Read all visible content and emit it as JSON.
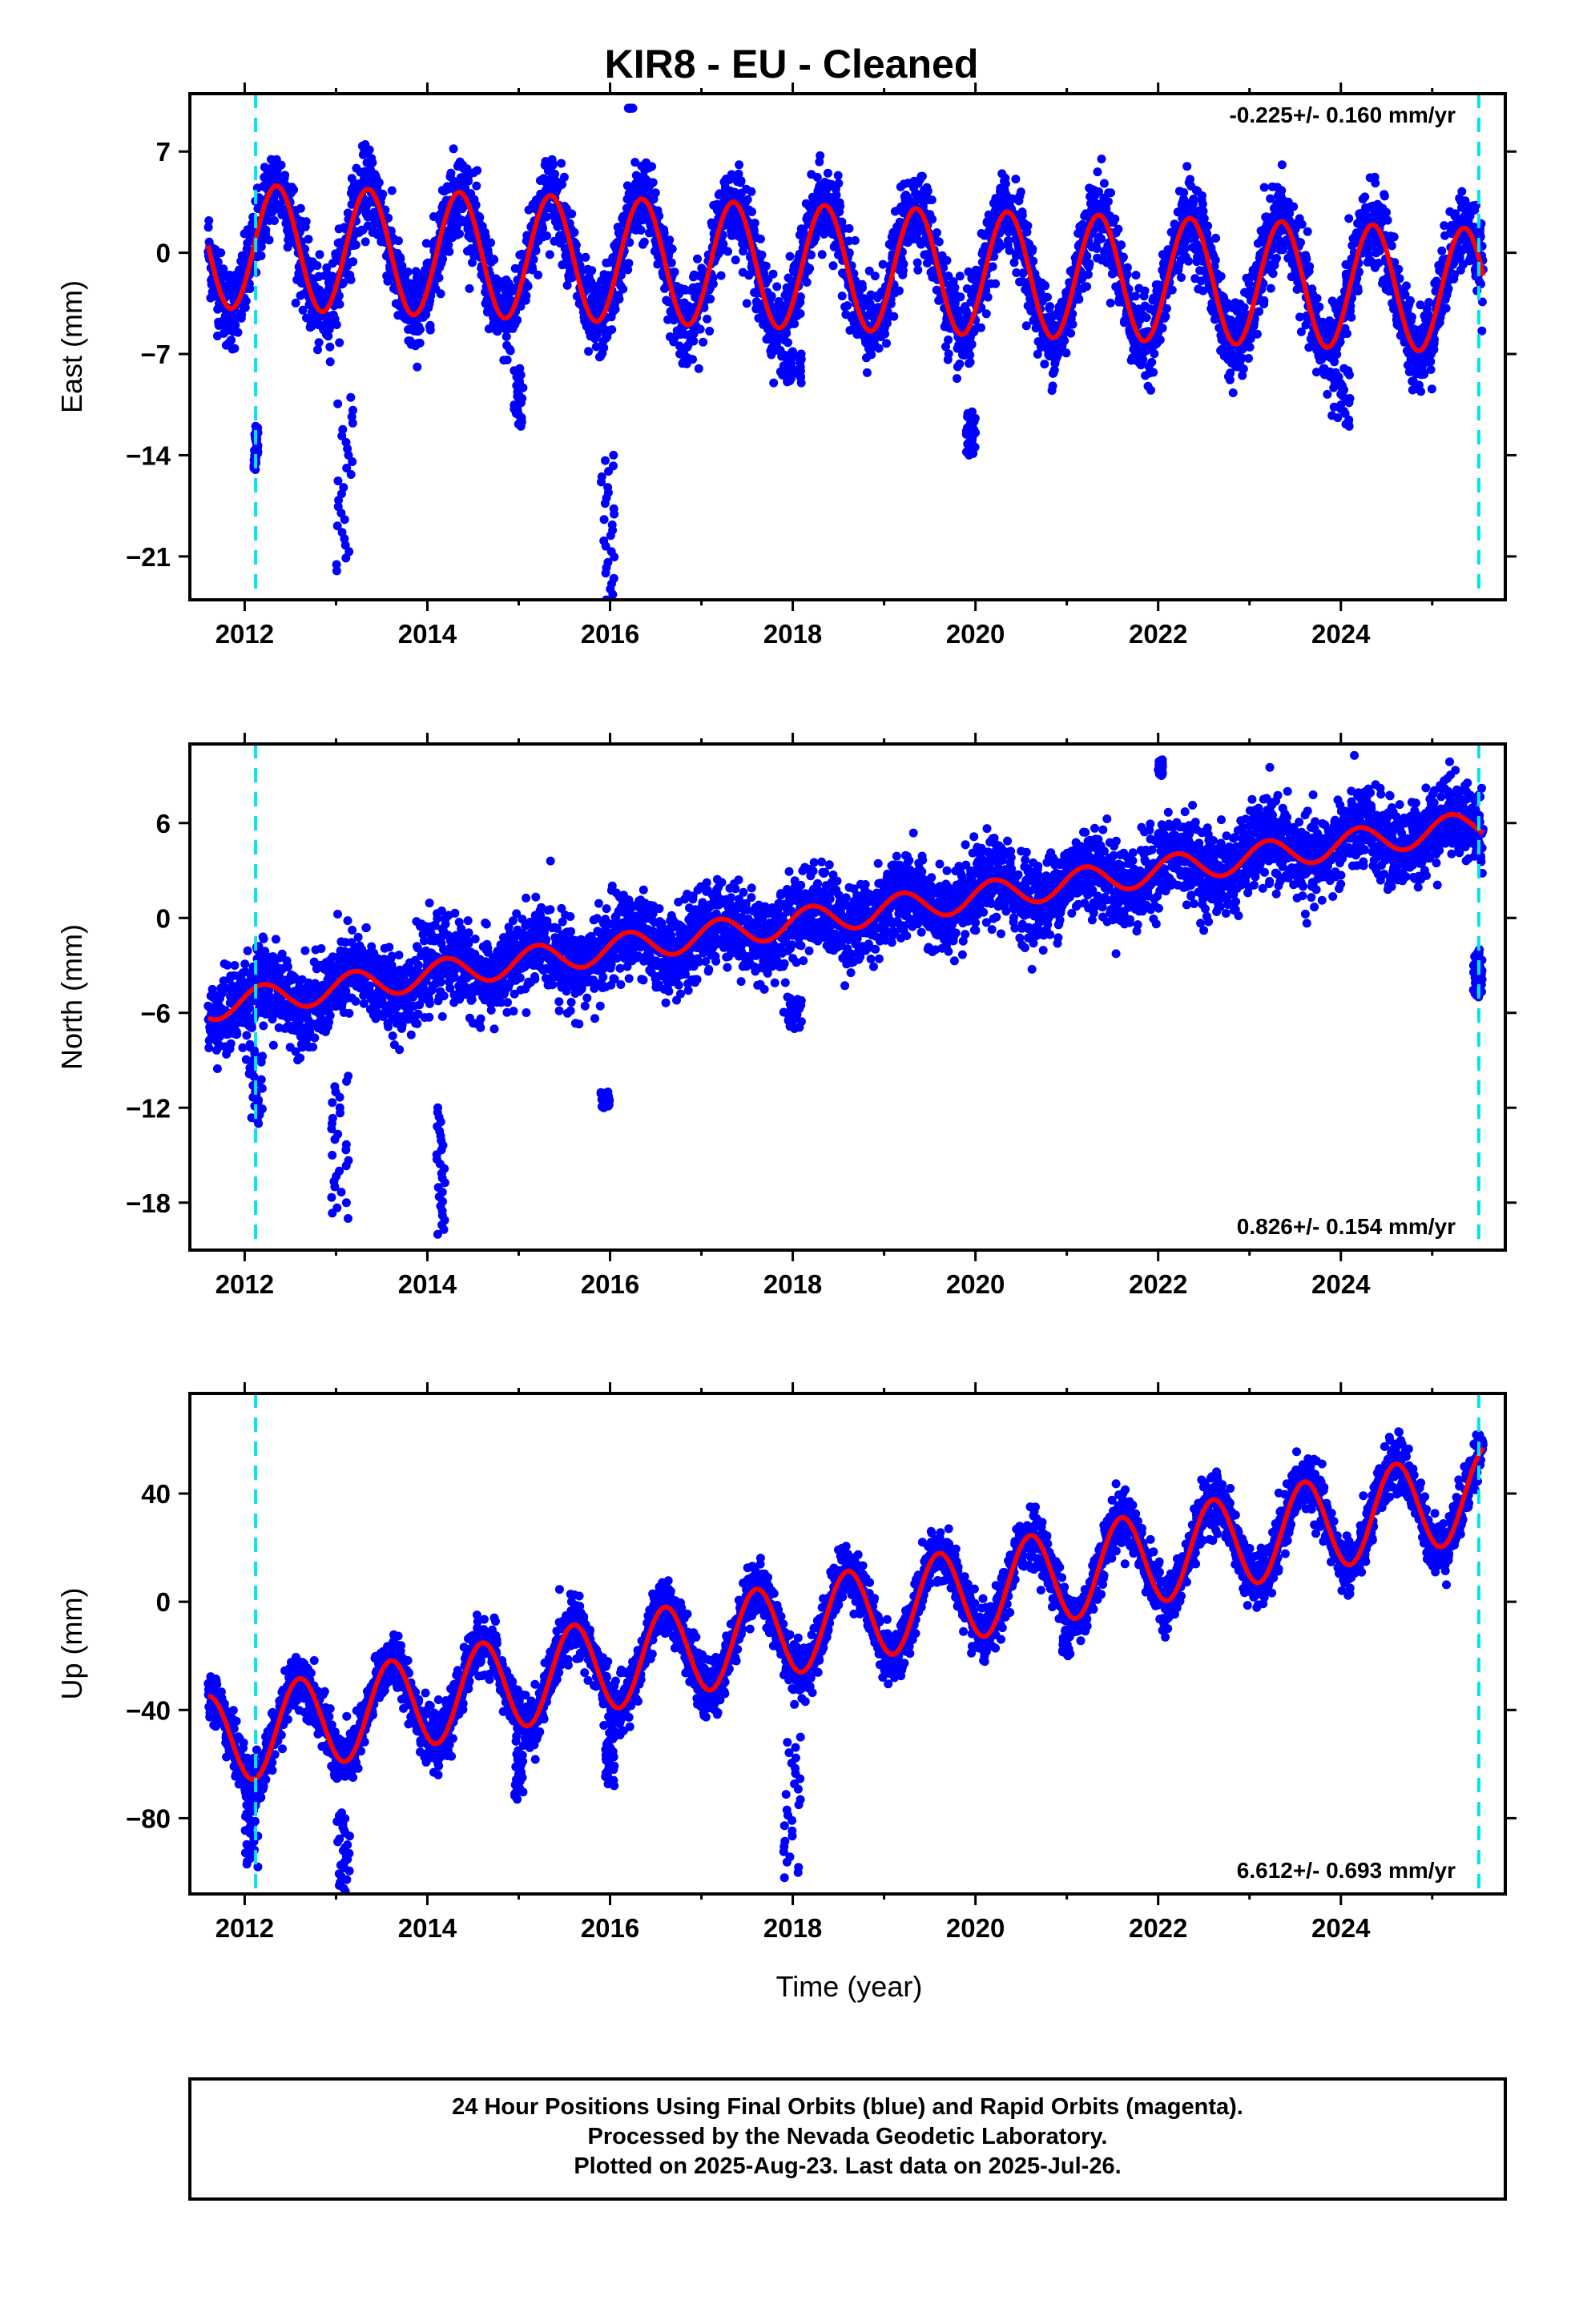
{
  "title": "KIR8  - EU - Cleaned",
  "xlabel": "Time (year)",
  "footer": {
    "line1": "24 Hour Positions Using Final Orbits (blue) and Rapid Orbits (magenta).",
    "line2": "Processed by the Nevada Geodetic Laboratory.",
    "line3": "Plotted on 2025-Aug-23. Last data on 2025-Jul-26."
  },
  "colors": {
    "data": "#0000ff",
    "model": "#ff0000",
    "break_line": "#00e5ee",
    "frame": "#000000"
  },
  "chart_data": [
    {
      "type": "scatter",
      "component": "east",
      "ylabel": "East (mm)",
      "rate_label": "-0.225+/- 0.160 mm/yr",
      "rate_position": "top-right",
      "xlim": [
        2011.4,
        2025.8
      ],
      "ylim": [
        -24,
        11
      ],
      "xticks": [
        2012,
        2014,
        2016,
        2018,
        2020,
        2022,
        2024
      ],
      "yticks": [
        7,
        0,
        -7,
        -14,
        -21
      ],
      "ytick_labels": [
        "7",
        "0",
        "−7",
        "−14",
        "−21"
      ],
      "breaks": [
        2012.12,
        2025.51
      ],
      "data_range": [
        2011.6,
        2025.56
      ],
      "model": {
        "offset": 0.5,
        "rate": -0.225,
        "annual_amp": 4.3,
        "annual_peak": 0.35,
        "ref_year": 2011.6
      },
      "scatter_sigma": 1.4,
      "outliers": [
        {
          "x": [
            2012.1,
            2012.15
          ],
          "y": [
            -15,
            -12
          ]
        },
        {
          "x": [
            2013.0,
            2013.2
          ],
          "y": [
            -22,
            -10
          ]
        },
        {
          "x": [
            2014.95,
            2015.05
          ],
          "y": [
            -12,
            -8
          ]
        },
        {
          "x": [
            2015.9,
            2016.05
          ],
          "y": [
            -24,
            -14
          ]
        },
        {
          "x": [
            2017.9,
            2018.1
          ],
          "y": [
            -9,
            -7
          ]
        },
        {
          "x": [
            2019.9,
            2020.0
          ],
          "y": [
            -14,
            -11
          ]
        },
        {
          "x": [
            2023.9,
            2024.1
          ],
          "y": [
            -12,
            -8
          ]
        },
        {
          "x": [
            2016.2,
            2016.25
          ],
          "y": [
            10,
            10
          ]
        }
      ]
    },
    {
      "type": "scatter",
      "component": "north",
      "ylabel": "North (mm)",
      "rate_label": "0.826+/- 0.154 mm/yr",
      "rate_position": "bottom-right",
      "xlim": [
        2011.4,
        2025.8
      ],
      "ylim": [
        -21,
        11
      ],
      "xticks": [
        2012,
        2014,
        2016,
        2018,
        2020,
        2022,
        2024
      ],
      "yticks": [
        6,
        0,
        -6,
        -12,
        -18
      ],
      "ytick_labels": [
        "6",
        "0",
        "−6",
        "−12",
        "−18"
      ],
      "breaks": [
        2012.12,
        2025.51
      ],
      "data_range": [
        2011.6,
        2025.56
      ],
      "model": {
        "offset": -5.6,
        "rate": 0.826,
        "annual_amp": 0.9,
        "annual_peak": 0.2,
        "ref_year": 2011.6
      },
      "scatter_sigma": 1.3,
      "outliers": [
        {
          "x": [
            2012.05,
            2012.2
          ],
          "y": [
            -13,
            -8
          ]
        },
        {
          "x": [
            2012.95,
            2013.15
          ],
          "y": [
            -19,
            -10
          ]
        },
        {
          "x": [
            2014.1,
            2014.2
          ],
          "y": [
            -20,
            -12
          ]
        },
        {
          "x": [
            2015.9,
            2016.0
          ],
          "y": [
            -12,
            -11
          ]
        },
        {
          "x": [
            2017.9,
            2018.1
          ],
          "y": [
            -7,
            -5
          ]
        },
        {
          "x": [
            2022.0,
            2022.05
          ],
          "y": [
            9,
            10
          ]
        },
        {
          "x": [
            2025.45,
            2025.55
          ],
          "y": [
            -5,
            -2
          ]
        }
      ]
    },
    {
      "type": "scatter",
      "component": "up",
      "ylabel": "Up (mm)",
      "rate_label": "6.612+/- 0.693 mm/yr",
      "rate_position": "bottom-right",
      "xlim": [
        2011.4,
        2025.8
      ],
      "ylim": [
        -108,
        77
      ],
      "xticks": [
        2012,
        2014,
        2016,
        2018,
        2020,
        2022,
        2024
      ],
      "yticks": [
        40,
        0,
        -40,
        -80
      ],
      "ytick_labels": [
        "40",
        "0",
        "−40",
        "−80"
      ],
      "breaks": [
        2012.12,
        2025.51
      ],
      "data_range": [
        2011.6,
        2025.56
      ],
      "model": {
        "offset": -52,
        "rate": 6.612,
        "annual_amp": 17,
        "annual_peak": 0.6,
        "ref_year": 2011.6
      },
      "scatter_sigma": 5,
      "outliers": [
        {
          "x": [
            2012.0,
            2012.15
          ],
          "y": [
            -98,
            -70
          ]
        },
        {
          "x": [
            2013.0,
            2013.15
          ],
          "y": [
            -107,
            -78
          ]
        },
        {
          "x": [
            2014.95,
            2015.05
          ],
          "y": [
            -73,
            -55
          ]
        },
        {
          "x": [
            2015.95,
            2016.05
          ],
          "y": [
            -68,
            -50
          ]
        },
        {
          "x": [
            2017.9,
            2018.1
          ],
          "y": [
            -102,
            -50
          ]
        },
        {
          "x": [
            2020.95,
            2021.05
          ],
          "y": [
            -20,
            -10
          ]
        }
      ]
    }
  ]
}
